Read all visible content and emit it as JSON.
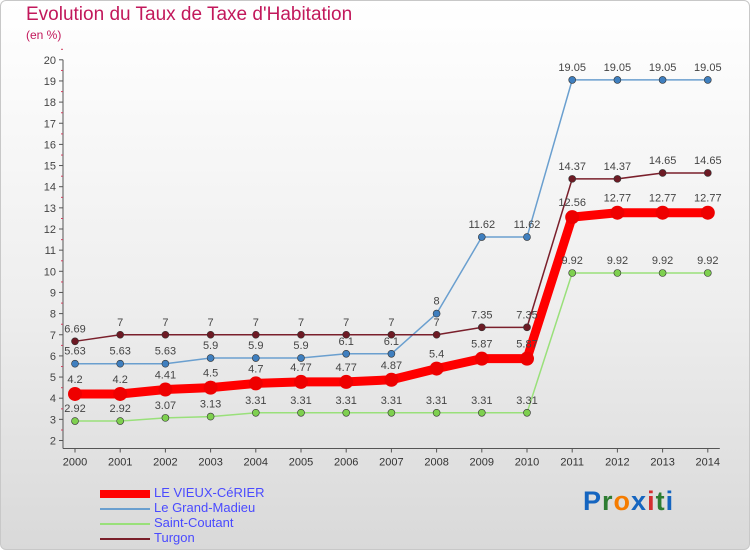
{
  "title": "Evolution du Taux de Taxe d'Habitation",
  "unit": "(en %)",
  "logo": [
    "P",
    "r",
    "o",
    "x",
    "i",
    "t",
    "i"
  ],
  "logo_colors": [
    "#1565c0",
    "#2e7d32",
    "#f57c00",
    "#1565c0",
    "#d32f2f",
    "#2e7d32",
    "#1565c0"
  ],
  "chart_data": {
    "type": "line",
    "x": [
      "2000",
      "2001",
      "2002",
      "2003",
      "2004",
      "2005",
      "2006",
      "2007",
      "2008",
      "2009",
      "2010",
      "2011",
      "2012",
      "2013",
      "2014"
    ],
    "ylim": [
      2,
      20
    ],
    "yticks": [
      2,
      3,
      4,
      5,
      6,
      7,
      8,
      9,
      10,
      11,
      12,
      13,
      14,
      15,
      16,
      17,
      18,
      19,
      20
    ],
    "grid": false,
    "legend_position": "bottom-left",
    "series": [
      {
        "name": "Le Grand-Madieu",
        "color": "#6a9fcf",
        "marker": "#3f7fbf",
        "values": [
          5.63,
          5.63,
          5.63,
          5.9,
          5.9,
          5.9,
          6.1,
          6.1,
          8,
          11.62,
          11.62,
          19.05,
          19.05,
          19.05,
          19.05
        ],
        "labels": [
          "5.63",
          "5.63",
          "5.63",
          "5.9",
          "5.9",
          "5.9",
          "6.1",
          "6.1",
          "8",
          "11.62",
          "11.62",
          "19.05",
          "19.05",
          "19.05",
          "19.05"
        ]
      },
      {
        "name": "Turgon",
        "color": "#7a1f2b",
        "marker": "#6d1a24",
        "values": [
          6.69,
          7,
          7,
          7,
          7,
          7,
          7,
          7,
          7,
          7.35,
          7.35,
          14.37,
          14.37,
          14.65,
          14.65
        ],
        "labels": [
          "6.69",
          "7",
          "7",
          "7",
          "7",
          "7",
          "7",
          "7",
          "7",
          "7.35",
          "7.35",
          "14.37",
          "14.37",
          "14.65",
          "14.65"
        ]
      },
      {
        "name": "Saint-Coutant",
        "color": "#99e07a",
        "marker": "#7ed04f",
        "values": [
          2.92,
          2.92,
          3.07,
          3.13,
          3.31,
          3.31,
          3.31,
          3.31,
          3.31,
          3.31,
          3.31,
          9.92,
          9.92,
          9.92,
          9.92
        ],
        "labels": [
          "2.92",
          "2.92",
          "3.07",
          "3.13",
          "3.31",
          "3.31",
          "3.31",
          "3.31",
          "3.31",
          "3.31",
          "3.31",
          "9.92",
          "9.92",
          "9.92",
          "9.92"
        ]
      },
      {
        "name": "LE VIEUX-CéRIER",
        "color": "#ff0000",
        "marker": "#ee0000",
        "values": [
          4.2,
          4.2,
          4.41,
          4.5,
          4.7,
          4.77,
          4.77,
          4.87,
          5.4,
          5.87,
          5.87,
          12.56,
          12.77,
          12.77,
          12.77
        ],
        "labels": [
          "4.2",
          "4.2",
          "4.41",
          "4.5",
          "4.7",
          "4.77",
          "4.77",
          "4.87",
          "5.4",
          "5.87",
          "5.87",
          "12.56",
          "12.77",
          "12.77",
          "12.77"
        ]
      }
    ],
    "legend_order": [
      "LE VIEUX-CéRIER",
      "Le Grand-Madieu",
      "Saint-Coutant",
      "Turgon"
    ]
  }
}
